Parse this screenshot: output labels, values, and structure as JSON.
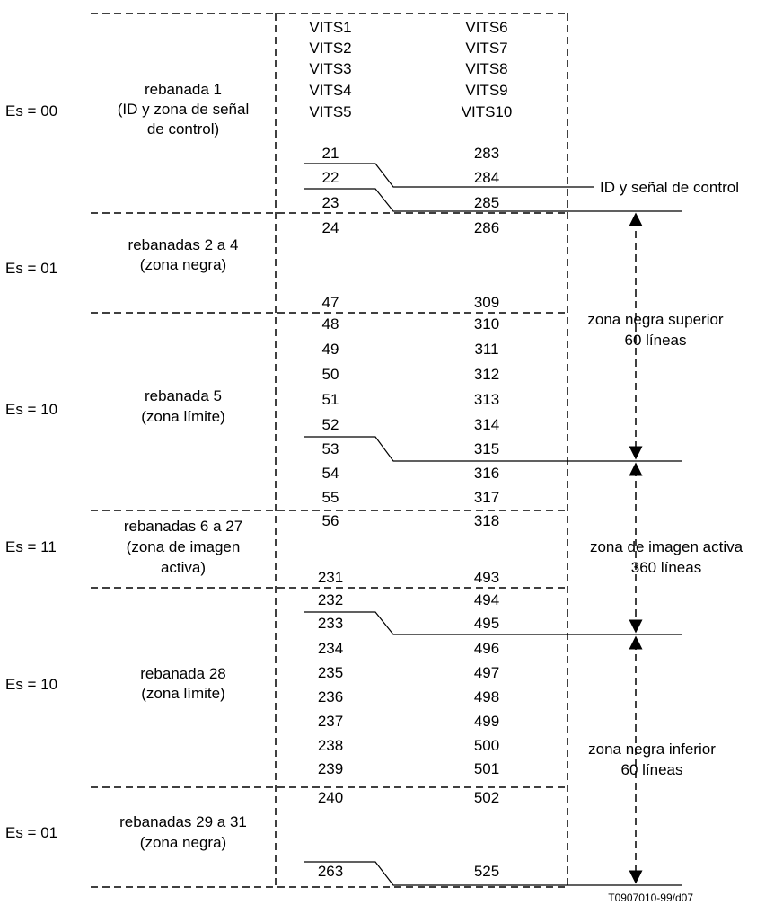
{
  "es_labels": [
    {
      "id": "es-00",
      "text": "Es = 00"
    },
    {
      "id": "es-01-top",
      "text": "Es = 01"
    },
    {
      "id": "es-10-top",
      "text": "Es = 10"
    },
    {
      "id": "es-11",
      "text": "Es = 11"
    },
    {
      "id": "es-10-bottom",
      "text": "Es = 10"
    },
    {
      "id": "es-01-bottom",
      "text": "Es = 01"
    }
  ],
  "slice_labels": [
    {
      "id": "slice-1",
      "lines": [
        "rebanada  1",
        "(ID y zona de señal",
        "de control)"
      ]
    },
    {
      "id": "slices-2-4",
      "lines": [
        "rebanadas 2 a 4",
        "(zona negra)"
      ]
    },
    {
      "id": "slice-5",
      "lines": [
        "rebanada 5",
        "(zona límite)"
      ]
    },
    {
      "id": "slices-6-27",
      "lines": [
        "rebanadas 6 a 27",
        "(zona de imagen",
        "activa)"
      ]
    },
    {
      "id": "slice-28",
      "lines": [
        "rebanada  28",
        "(zona límite)"
      ]
    },
    {
      "id": "slices-29-31",
      "lines": [
        "rebanadas 29 a 31",
        "(zona negra)"
      ]
    }
  ],
  "vits_field1": [
    "VITS1",
    "VITS2",
    "VITS3",
    "VITS4",
    "VITS5"
  ],
  "vits_field2": [
    "VITS6",
    "VITS7",
    "VITS8",
    "VITS9",
    "VITS10"
  ],
  "line_pairs": [
    [
      "21",
      "283"
    ],
    [
      "22",
      "284"
    ],
    [
      "23",
      "285"
    ],
    [
      "24",
      "286"
    ],
    [
      "47",
      "309"
    ],
    [
      "48",
      "310"
    ],
    [
      "49",
      "311"
    ],
    [
      "50",
      "312"
    ],
    [
      "51",
      "313"
    ],
    [
      "52",
      "314"
    ],
    [
      "53",
      "315"
    ],
    [
      "54",
      "316"
    ],
    [
      "55",
      "317"
    ],
    [
      "56",
      "318"
    ],
    [
      "231",
      "493"
    ],
    [
      "232",
      "494"
    ],
    [
      "233",
      "495"
    ],
    [
      "234",
      "496"
    ],
    [
      "235",
      "497"
    ],
    [
      "236",
      "498"
    ],
    [
      "237",
      "499"
    ],
    [
      "238",
      "500"
    ],
    [
      "239",
      "501"
    ],
    [
      "240",
      "502"
    ],
    [
      "263",
      "525"
    ]
  ],
  "annotations": {
    "id_signal": "ID y señal de control",
    "upper_black": [
      "zona negra superior",
      "60 líneas"
    ],
    "active_picture": [
      "zona de imagen activa",
      "360 líneas"
    ],
    "lower_black": [
      "zona negra inferior",
      "60 líneas"
    ]
  },
  "figure_code": "T0907010-99/d07"
}
